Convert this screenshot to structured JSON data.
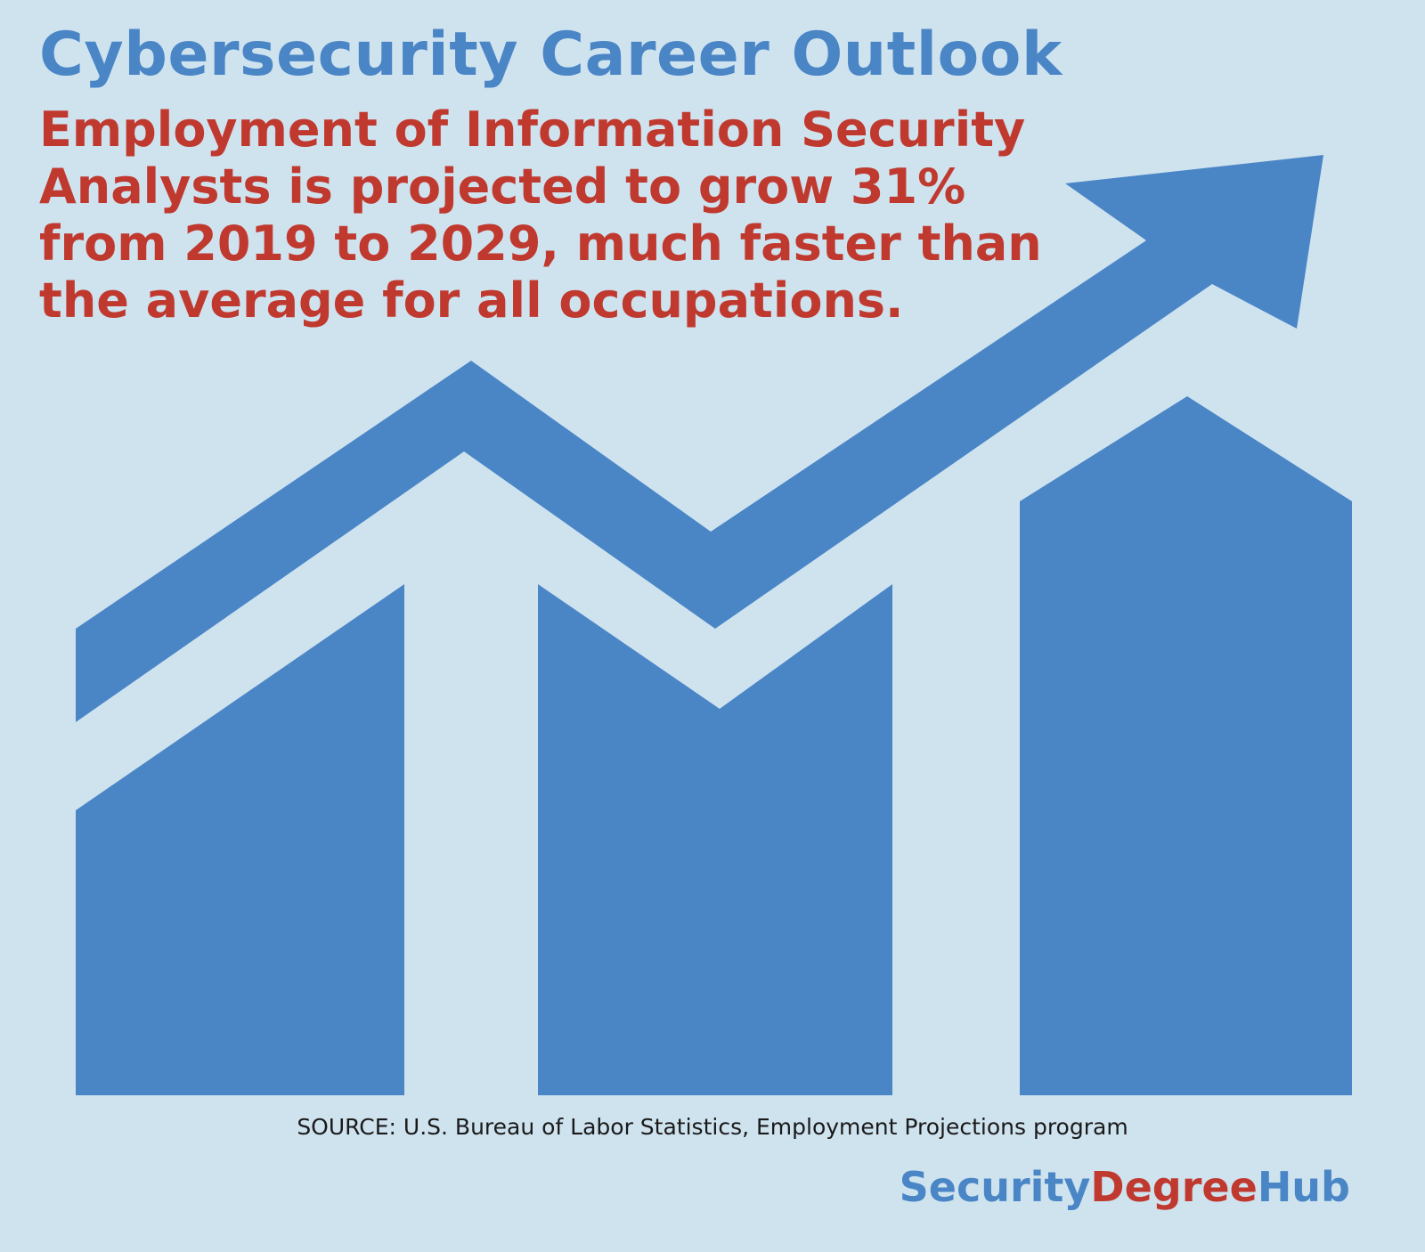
{
  "title": "Cybersecurity Career Outlook",
  "headline": {
    "lines": [
      "Employment of Information Security",
      "Analysts is projected to grow 31%",
      "from 2019 to 2029, much faster than",
      "the average for all occupations."
    ]
  },
  "source": "SOURCE: U.S. Bureau of Labor Statistics, Employment Projections program",
  "brand": {
    "part1": "Security",
    "part2": "Degree",
    "part3": "Hub"
  },
  "colors": {
    "background": "#cfe3ef",
    "primary_blue": "#4a86c6",
    "accent_red": "#c0392f"
  },
  "icon": "trending-up-bar-chart-icon"
}
